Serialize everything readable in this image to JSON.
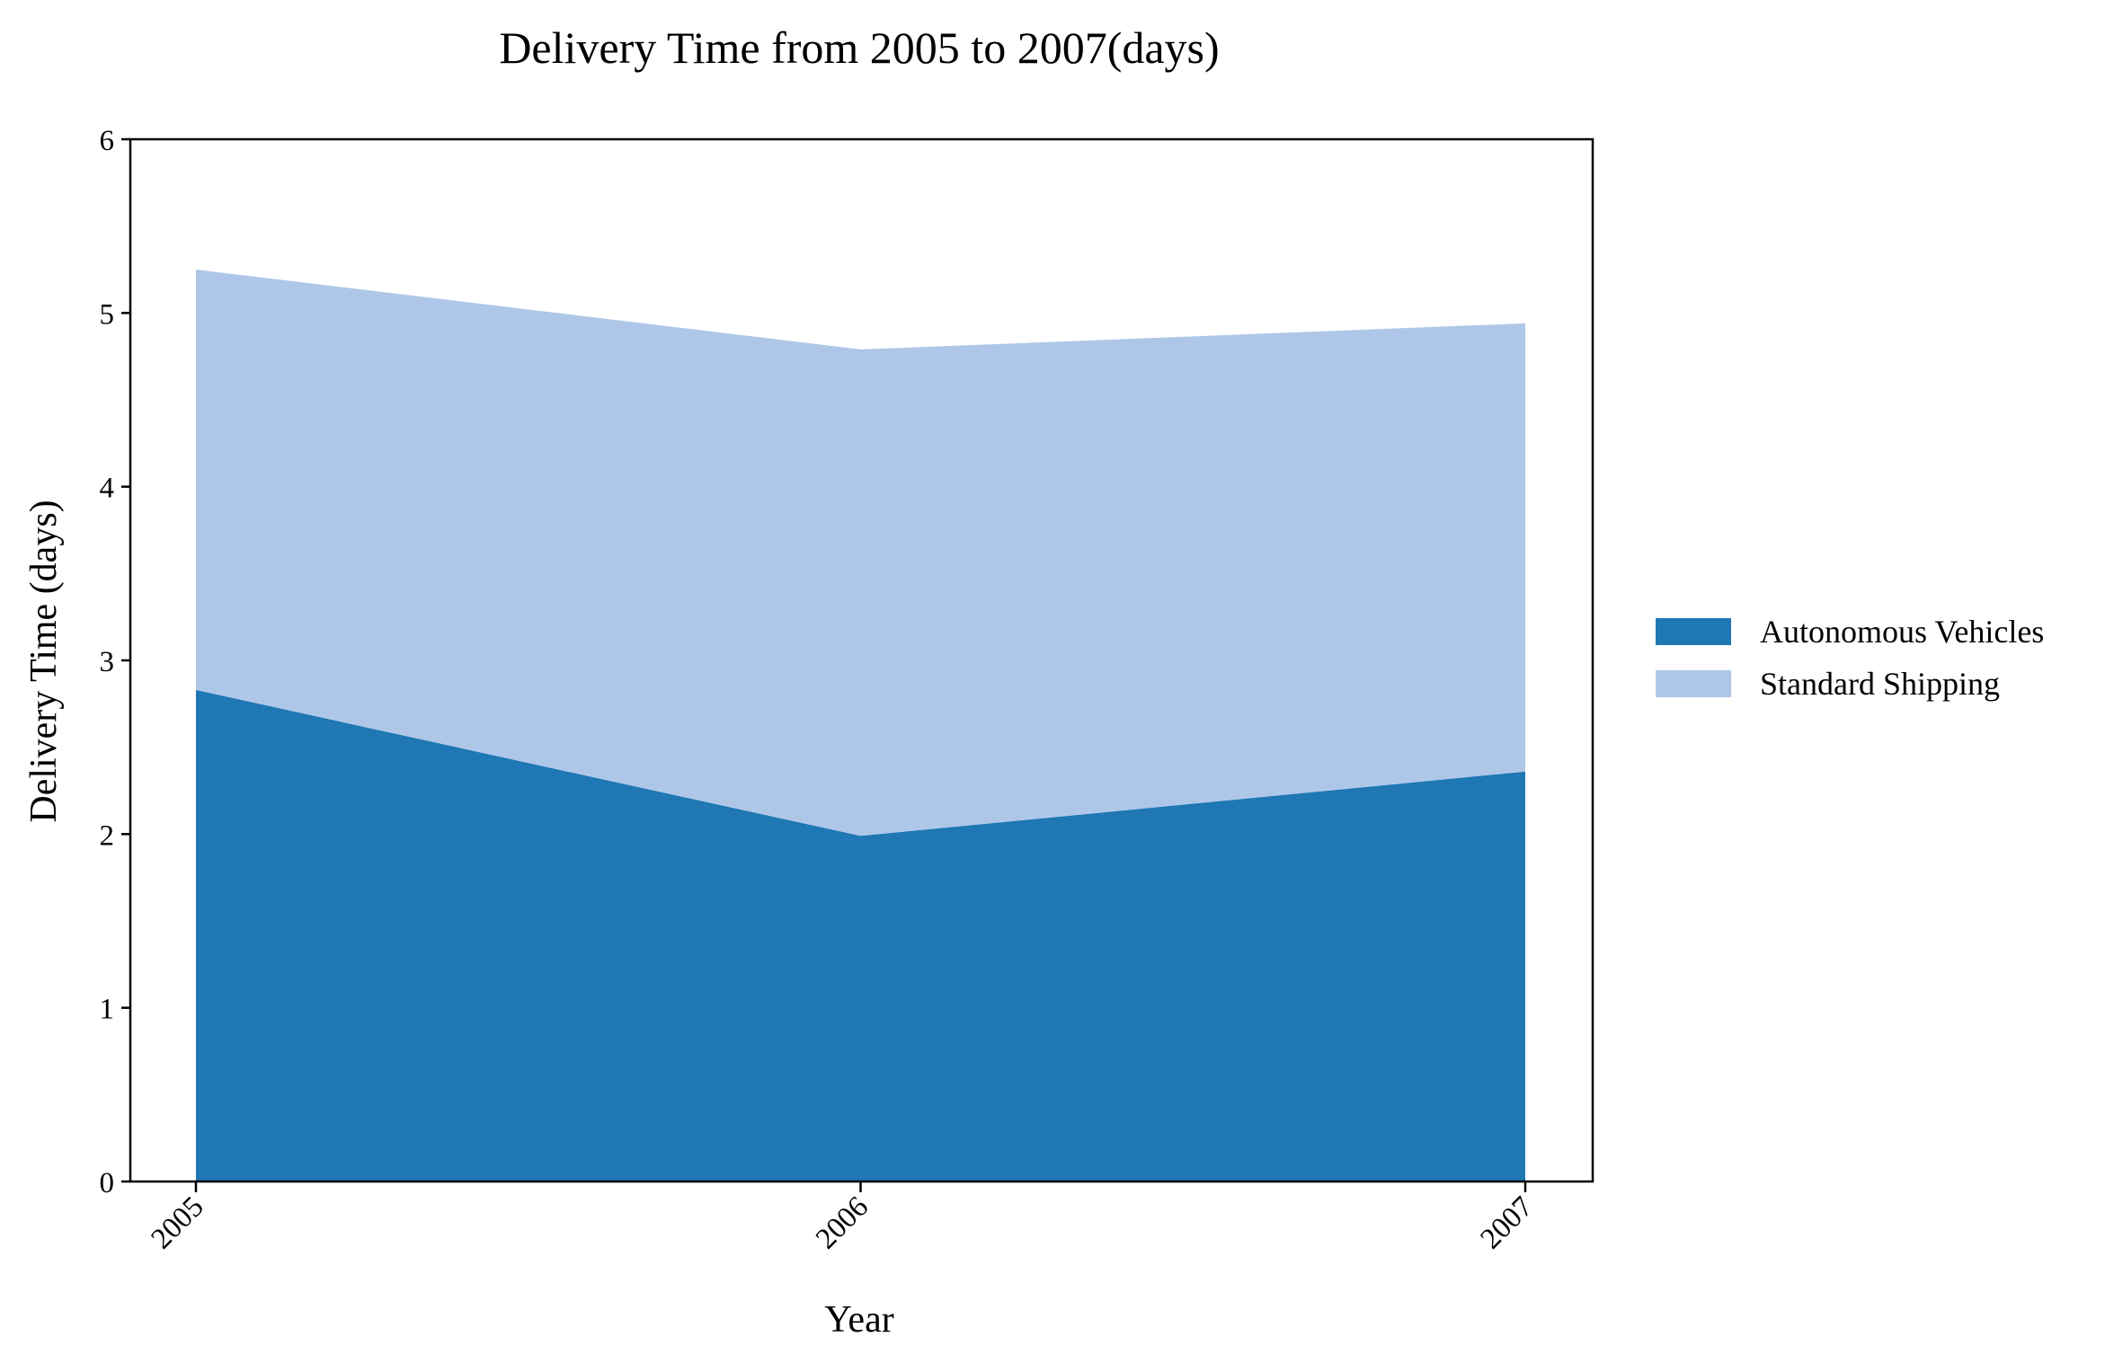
{
  "chart_data": {
    "type": "area",
    "stacked": true,
    "title": "Delivery Time from 2005 to 2007(days)",
    "xlabel": "Year",
    "ylabel": "Delivery Time (days)",
    "categories": [
      "2005",
      "2006",
      "2007"
    ],
    "ylim": [
      0,
      6
    ],
    "yticks": [
      "0",
      "1",
      "2",
      "3",
      "4",
      "5",
      "6"
    ],
    "grid": false,
    "legend_position": "right",
    "series": [
      {
        "name": "Autonomous Vehicles",
        "values": [
          2.83,
          1.99,
          2.36
        ],
        "color": "#1f77b4"
      },
      {
        "name": "Standard Shipping",
        "values": [
          2.42,
          2.8,
          2.58
        ],
        "color": "#aec7e8"
      }
    ]
  }
}
